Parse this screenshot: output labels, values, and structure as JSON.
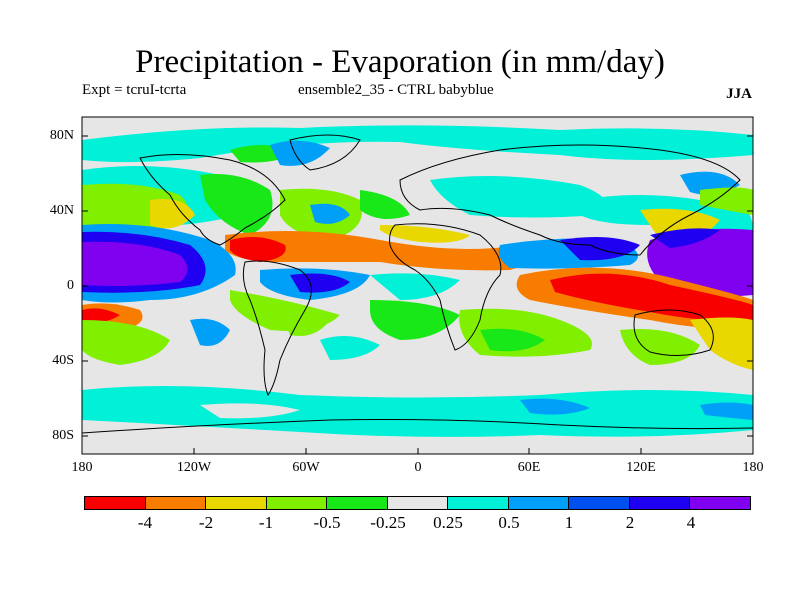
{
  "title": "Precipitation - Evaporation (in mm/day)",
  "experiment_label": "Expt = tcruI-tcrta",
  "ensemble_label": "ensemble2_35 - CTRL babyblue",
  "season": "JJA",
  "lat_ticks": [
    "80N",
    "40N",
    "0",
    "40S",
    "80S"
  ],
  "lon_ticks": [
    "180",
    "120W",
    "60W",
    "0",
    "60E",
    "120E",
    "180"
  ],
  "legend_colors": [
    "#f80000",
    "#f87c00",
    "#e8d800",
    "#80f000",
    "#18e818",
    "#e6e6e6",
    "#00f0d8",
    "#00a0f8",
    "#0050f0",
    "#2000f0",
    "#8000f0"
  ],
  "legend_labels": [
    "-4",
    "-2",
    "-1",
    "-0.5",
    "-0.25",
    "0.25",
    "0.5",
    "1",
    "2",
    "4"
  ],
  "background_color": "#e6e6e6"
}
